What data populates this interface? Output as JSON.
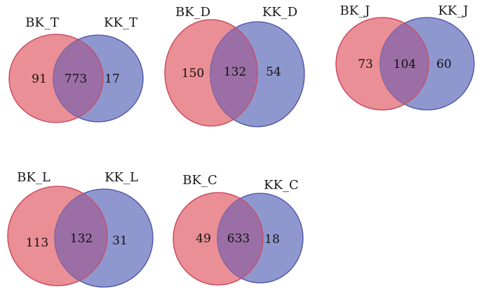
{
  "colors": {
    "left_fill": "#ea8f95",
    "left_stroke": "#c94a5f",
    "right_fill": "#8f97cf",
    "right_stroke": "#4b4fa8",
    "overlap_fill": "#9b6fa6"
  },
  "diagrams": [
    {
      "left_label": "BK_T",
      "right_label": "KK_T",
      "left_only": "91",
      "both": "773",
      "right_only": "17"
    },
    {
      "left_label": "BK_D",
      "right_label": "KK_D",
      "left_only": "150",
      "both": "132",
      "right_only": "54"
    },
    {
      "left_label": "BK_J",
      "right_label": "KK_J",
      "left_only": "73",
      "both": "104",
      "right_only": "60"
    },
    {
      "left_label": "BK_L",
      "right_label": "KK_L",
      "left_only": "113",
      "both": "132",
      "right_only": "31"
    },
    {
      "left_label": "BK_C",
      "right_label": "KK_C",
      "left_only": "49",
      "both": "633",
      "right_only": "18"
    }
  ]
}
